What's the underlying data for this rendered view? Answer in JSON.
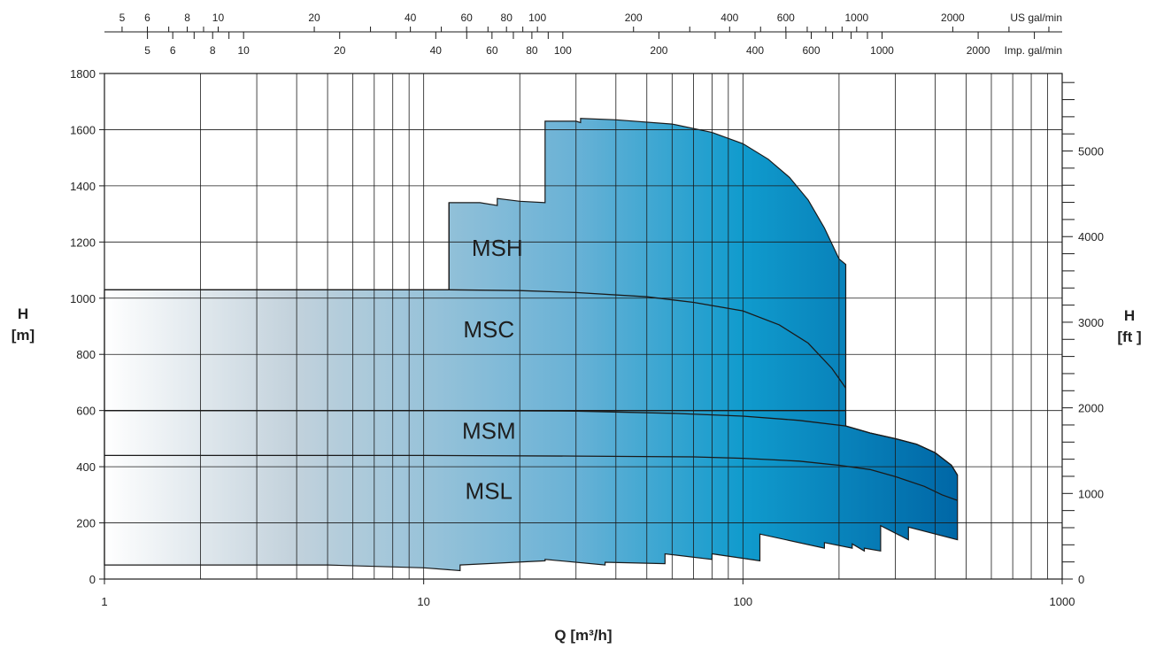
{
  "chart_data": {
    "type": "area",
    "x_axis": {
      "label": "Q [m³/h]",
      "scale": "log",
      "range": [
        1,
        1000
      ],
      "ticks": [
        1,
        10,
        100,
        1000
      ],
      "tick_labels": [
        "1",
        "10",
        "100",
        "1000"
      ]
    },
    "y_axis": {
      "label_line1": "H",
      "label_line2": "[m]",
      "range": [
        0,
        1800
      ],
      "ticks": [
        0,
        200,
        400,
        600,
        800,
        1000,
        1200,
        1400,
        1600,
        1800
      ],
      "tick_labels": [
        "0",
        "200",
        "400",
        "600",
        "800",
        "1000",
        "1200",
        "1400",
        "1600",
        "1800"
      ]
    },
    "y2_axis": {
      "label_line1": "H",
      "label_line2": "[ft ]",
      "unit_factor_ft_per_m": 3.2808,
      "ticks": [
        0,
        1000,
        2000,
        3000,
        4000,
        5000
      ],
      "tick_labels": [
        "0",
        "1000",
        "2000",
        "3000",
        "4000",
        "5000"
      ]
    },
    "x2_axis": {
      "unit": "US gal/min",
      "tick_values": [
        5,
        6,
        8,
        10,
        20,
        40,
        60,
        80,
        100,
        200,
        400,
        600,
        1000,
        2000
      ],
      "tick_labels": [
        "5",
        "6",
        "8",
        "10",
        "20",
        "40",
        "60",
        "80",
        "100",
        "200",
        "400",
        "600",
        "1000",
        "2000"
      ]
    },
    "x3_axis": {
      "unit": "Imp. gal/min",
      "tick_values": [
        5,
        6,
        8,
        10,
        20,
        40,
        60,
        80,
        100,
        200,
        400,
        600,
        1000,
        2000
      ],
      "tick_labels": [
        "5",
        "6",
        "8",
        "10",
        "20",
        "40",
        "60",
        "80",
        "100",
        "200",
        "400",
        "600",
        "1000",
        "2000"
      ]
    },
    "grid": true,
    "series": [
      {
        "name": "MSH",
        "label_at": [
          17,
          1150
        ],
        "outline": [
          [
            12,
            1030
          ],
          [
            12,
            1340
          ],
          [
            15,
            1340
          ],
          [
            17,
            1330
          ],
          [
            17,
            1355
          ],
          [
            20,
            1345
          ],
          [
            24,
            1340
          ],
          [
            24,
            1630
          ],
          [
            30,
            1630
          ],
          [
            31,
            1625
          ],
          [
            31,
            1640
          ],
          [
            40,
            1635
          ],
          [
            60,
            1620
          ],
          [
            80,
            1590
          ],
          [
            100,
            1550
          ],
          [
            120,
            1495
          ],
          [
            140,
            1430
          ],
          [
            160,
            1350
          ],
          [
            180,
            1250
          ],
          [
            200,
            1140
          ],
          [
            210,
            1120
          ],
          [
            210,
            680
          ]
        ]
      },
      {
        "name": "MSC",
        "label_at": [
          16,
          860
        ],
        "top_curve": [
          [
            1,
            1030
          ],
          [
            5,
            1030
          ],
          [
            12,
            1030
          ],
          [
            20,
            1027
          ],
          [
            30,
            1020
          ],
          [
            50,
            1005
          ],
          [
            70,
            985
          ],
          [
            100,
            955
          ],
          [
            130,
            905
          ],
          [
            160,
            840
          ],
          [
            190,
            750
          ],
          [
            210,
            680
          ]
        ],
        "bottom_steps": [
          [
            1,
            600
          ],
          [
            210,
            600
          ],
          [
            210,
            680
          ]
        ]
      },
      {
        "name": "MSM",
        "label_at": [
          16,
          500
        ],
        "top_curve": [
          [
            1,
            600
          ],
          [
            10,
            600
          ],
          [
            30,
            598
          ],
          [
            60,
            590
          ],
          [
            100,
            580
          ],
          [
            150,
            565
          ],
          [
            210,
            545
          ],
          [
            250,
            520
          ],
          [
            300,
            500
          ],
          [
            350,
            480
          ],
          [
            400,
            450
          ],
          [
            450,
            405
          ],
          [
            470,
            370
          ]
        ]
      },
      {
        "name": "MSL",
        "label_at": [
          16,
          285
        ],
        "top_curve": [
          [
            1,
            440
          ],
          [
            10,
            440
          ],
          [
            30,
            438
          ],
          [
            70,
            435
          ],
          [
            100,
            430
          ],
          [
            150,
            420
          ],
          [
            200,
            405
          ],
          [
            250,
            390
          ],
          [
            300,
            365
          ],
          [
            370,
            330
          ],
          [
            420,
            300
          ],
          [
            470,
            280
          ]
        ],
        "bottom_steps": [
          [
            1,
            50
          ],
          [
            5,
            50
          ],
          [
            10,
            40
          ],
          [
            13,
            30
          ],
          [
            13,
            50
          ],
          [
            24,
            65
          ],
          [
            24,
            70
          ],
          [
            37,
            50
          ],
          [
            37,
            60
          ],
          [
            57,
            55
          ],
          [
            57,
            90
          ],
          [
            80,
            70
          ],
          [
            80,
            90
          ],
          [
            113,
            65
          ],
          [
            113,
            160
          ],
          [
            180,
            110
          ],
          [
            180,
            130
          ],
          [
            220,
            110
          ],
          [
            220,
            125
          ],
          [
            240,
            100
          ],
          [
            240,
            110
          ],
          [
            270,
            100
          ],
          [
            270,
            190
          ],
          [
            330,
            140
          ],
          [
            330,
            185
          ],
          [
            470,
            140
          ],
          [
            470,
            370
          ]
        ]
      }
    ],
    "gradient": {
      "start": "#ffffff",
      "mid1": "#c3d5df",
      "mid2": "#6bb2d4",
      "mid3": "#0b97c9",
      "end": "#006eaa"
    }
  }
}
